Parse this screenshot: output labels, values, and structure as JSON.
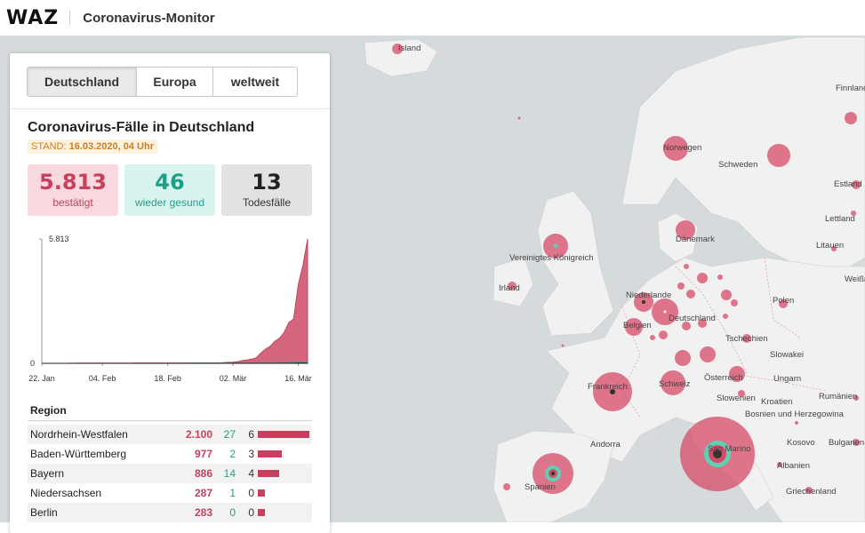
{
  "header": {
    "logo": "WAZ",
    "title": "Coronavirus-Monitor"
  },
  "tabs": [
    {
      "label": "Deutschland",
      "active": true
    },
    {
      "label": "Europa",
      "active": false
    },
    {
      "label": "weltweit",
      "active": false
    }
  ],
  "panel": {
    "title": "Coronavirus-Fälle in Deutschland",
    "stand_label": "STAND:",
    "stand_value": "16.03.2020, 04 Uhr"
  },
  "stats": {
    "confirmed": {
      "value": "5.813",
      "label": "bestätigt"
    },
    "recovered": {
      "value": "46",
      "label": "wieder gesund"
    },
    "deaths": {
      "value": "13",
      "label": "Todesfälle"
    }
  },
  "colors": {
    "confirmed": "#c8405b",
    "recovered": "#1f9e8a",
    "deaths": "#222222",
    "map_bg": "#d5dadd"
  },
  "chart_data": {
    "type": "area",
    "x_ticks": [
      "22. Jan",
      "04. Feb",
      "18. Feb",
      "02. Mär",
      "16. Mär"
    ],
    "y_ticks": [
      "0",
      "5.813"
    ],
    "ylim": [
      0,
      5813
    ],
    "series": [
      {
        "name": "bestätigt",
        "color": "#c8405b",
        "values": [
          0,
          0,
          0,
          0,
          0,
          0,
          4,
          5,
          7,
          8,
          10,
          12,
          12,
          12,
          12,
          13,
          13,
          14,
          14,
          14,
          16,
          16,
          16,
          16,
          16,
          16,
          16,
          16,
          16,
          16,
          16,
          16,
          16,
          16,
          16,
          16,
          16,
          16,
          18,
          27,
          46,
          48,
          79,
          130,
          159,
          196,
          262,
          482,
          670,
          799,
          1040,
          1176,
          1457,
          1908,
          2078,
          3675,
          4585,
          5813
        ]
      },
      {
        "name": "wieder gesund",
        "color": "#1f9e8a",
        "values": [
          0,
          0,
          0,
          0,
          0,
          0,
          0,
          0,
          0,
          0,
          0,
          0,
          0,
          0,
          0,
          0,
          0,
          0,
          0,
          0,
          0,
          0,
          0,
          0,
          0,
          0,
          1,
          1,
          1,
          1,
          1,
          1,
          12,
          14,
          14,
          14,
          14,
          14,
          14,
          14,
          16,
          16,
          16,
          16,
          16,
          16,
          16,
          17,
          17,
          18,
          18,
          25,
          25,
          25,
          46,
          46,
          46,
          46
        ]
      },
      {
        "name": "Todesfälle",
        "color": "#222222",
        "values": [
          0,
          0,
          0,
          0,
          0,
          0,
          0,
          0,
          0,
          0,
          0,
          0,
          0,
          0,
          0,
          0,
          0,
          0,
          0,
          0,
          0,
          0,
          0,
          0,
          0,
          0,
          0,
          0,
          0,
          0,
          0,
          0,
          0,
          0,
          0,
          0,
          0,
          0,
          0,
          0,
          0,
          0,
          0,
          0,
          0,
          0,
          0,
          0,
          0,
          2,
          2,
          2,
          3,
          3,
          6,
          8,
          12,
          13
        ]
      }
    ]
  },
  "region": {
    "header": "Region",
    "rows": [
      {
        "name": "Nordrhein-Westfalen",
        "confirmed": "2.100",
        "recovered": "27",
        "deaths": "6",
        "share": 1.0
      },
      {
        "name": "Baden-Württemberg",
        "confirmed": "977",
        "recovered": "2",
        "deaths": "3",
        "share": 0.47
      },
      {
        "name": "Bayern",
        "confirmed": "886",
        "recovered": "14",
        "deaths": "4",
        "share": 0.42
      },
      {
        "name": "Niedersachsen",
        "confirmed": "287",
        "recovered": "1",
        "deaths": "0",
        "share": 0.14
      },
      {
        "name": "Berlin",
        "confirmed": "283",
        "recovered": "0",
        "deaths": "0",
        "share": 0.13
      }
    ]
  },
  "map": {
    "labels": [
      "Island",
      "Finnland",
      "Norwegen",
      "Schweden",
      "Estland",
      "Lettland",
      "Litauen",
      "Weißr",
      "Dänemark",
      "Vereinigtes Königreich",
      "Irland",
      "Niederlande",
      "Belgien",
      "Deutschland",
      "Polen",
      "Tschechien",
      "Slowakei",
      "Frankreich",
      "Schweiz",
      "Österreich",
      "Ungarn",
      "Slowenien",
      "Kroatien",
      "Bosnien und Herzegowina",
      "Rumänien",
      "San Marino",
      "Andorra",
      "Spanien",
      "Kosovo",
      "Bulgarien",
      "Albanien",
      "Griechenland"
    ]
  }
}
